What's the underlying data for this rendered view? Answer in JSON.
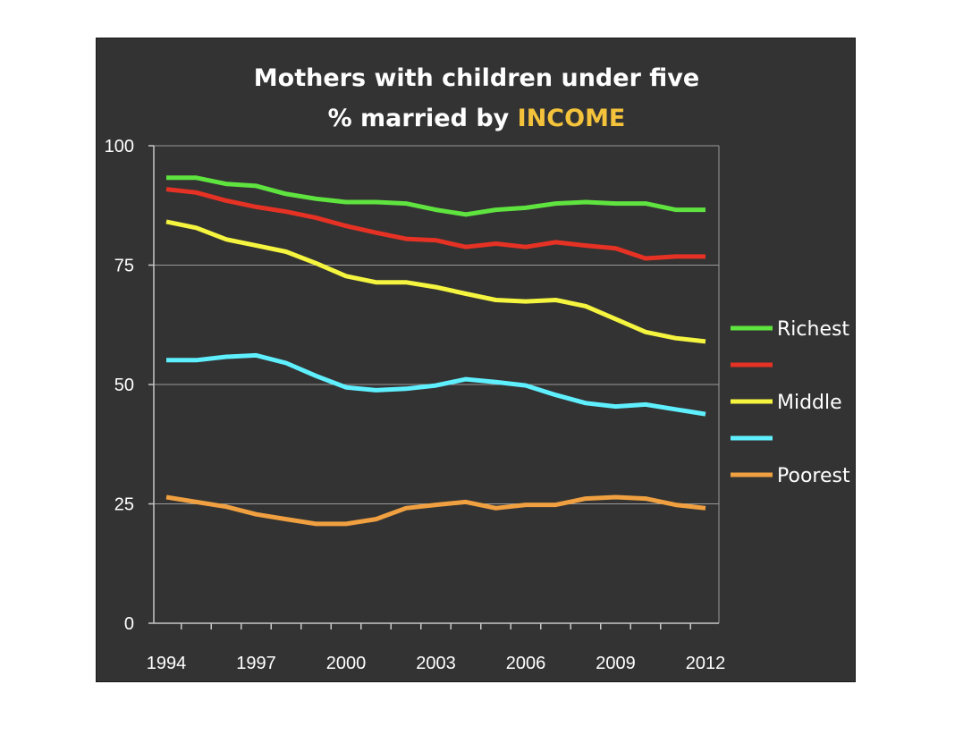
{
  "chart_data": {
    "type": "line",
    "title": "Mothers with children under five",
    "subtitle_prefix": "% married by ",
    "subtitle_highlight": "INCOME",
    "subtitle_highlight_color": "#f5c33b",
    "x": [
      1994,
      1995,
      1996,
      1997,
      1998,
      1999,
      2000,
      2001,
      2002,
      2003,
      2004,
      2005,
      2006,
      2007,
      2008,
      2009,
      2010,
      2011,
      2012
    ],
    "x_tick_labels": [
      "1994",
      "1997",
      "2000",
      "2003",
      "2006",
      "2009",
      "2012"
    ],
    "y_tick_labels": [
      "0",
      "25",
      "50",
      "75",
      "100"
    ],
    "ylim": [
      0,
      100
    ],
    "grid": true,
    "legend_position": "right",
    "series": [
      {
        "name": "Richest",
        "color": "#5fe33f",
        "values": [
          93.3,
          93.3,
          92.0,
          91.6,
          89.9,
          88.9,
          88.2,
          88.2,
          87.9,
          86.6,
          85.6,
          86.6,
          87.0,
          87.9,
          88.2,
          87.9,
          87.9,
          86.6,
          86.6
        ]
      },
      {
        "name": "",
        "color": "#e63224",
        "values": [
          90.9,
          90.2,
          88.5,
          87.2,
          86.2,
          84.9,
          83.2,
          81.8,
          80.5,
          80.2,
          78.8,
          79.5,
          78.8,
          79.8,
          79.1,
          78.5,
          76.4,
          76.8,
          76.8
        ]
      },
      {
        "name": "Middle",
        "color": "#f5f540",
        "values": [
          84.1,
          82.8,
          80.4,
          79.1,
          77.8,
          75.4,
          72.7,
          71.4,
          71.4,
          70.4,
          69.0,
          67.7,
          67.4,
          67.7,
          66.4,
          63.7,
          61.0,
          59.7,
          59.0
        ]
      },
      {
        "name": "",
        "color": "#5ff0ff",
        "values": [
          55.1,
          55.1,
          55.8,
          56.1,
          54.5,
          51.8,
          49.4,
          48.8,
          49.1,
          49.8,
          51.1,
          50.5,
          49.8,
          47.8,
          46.1,
          45.4,
          45.8,
          44.8,
          43.8
        ]
      },
      {
        "name": "Poorest",
        "color": "#f0a040",
        "values": [
          26.4,
          25.4,
          24.4,
          22.8,
          21.8,
          20.8,
          20.8,
          21.8,
          24.1,
          24.8,
          25.4,
          24.1,
          24.8,
          24.8,
          26.1,
          26.4,
          26.1,
          24.8,
          24.1
        ]
      }
    ]
  }
}
